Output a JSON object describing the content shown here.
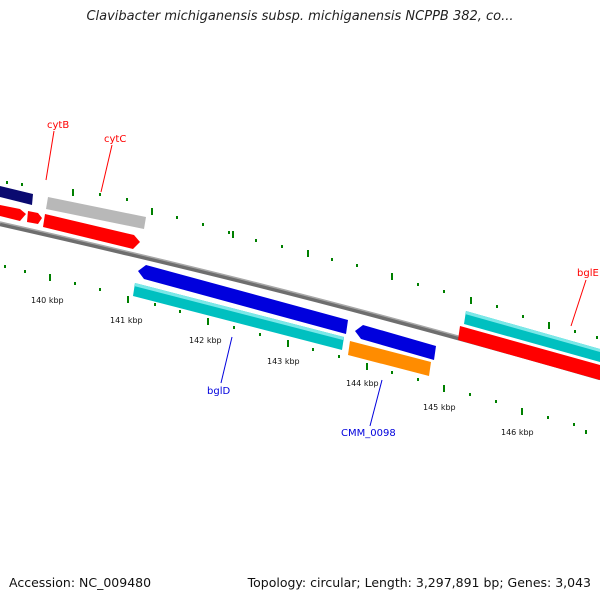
{
  "title": "Clavibacter michiganensis subsp. michiganensis NCPPB 382, co...",
  "footer": {
    "accession": "Accession: NC_009480",
    "topology": "Topology: circular; Length: 3,297,891 bp; Genes: 3,043"
  },
  "scale_labels": [
    "140 kbp",
    "141 kbp",
    "142 kbp",
    "143 kbp",
    "144 kbp",
    "145 kbp",
    "146 kbp"
  ],
  "genes": {
    "cytB": "cytB",
    "cytC": "cytC",
    "bglE": "bglE",
    "bglD": "bglD",
    "CMM_0098": "CMM_0098"
  },
  "colors": {
    "red": "#ff0000",
    "blue": "#0000dd",
    "navy": "#000080",
    "cyan": "#00c8c8",
    "orange": "#ff8800",
    "gray": "#b4b4b4",
    "tick": "#008000",
    "backbone": "#7a7a7a"
  }
}
